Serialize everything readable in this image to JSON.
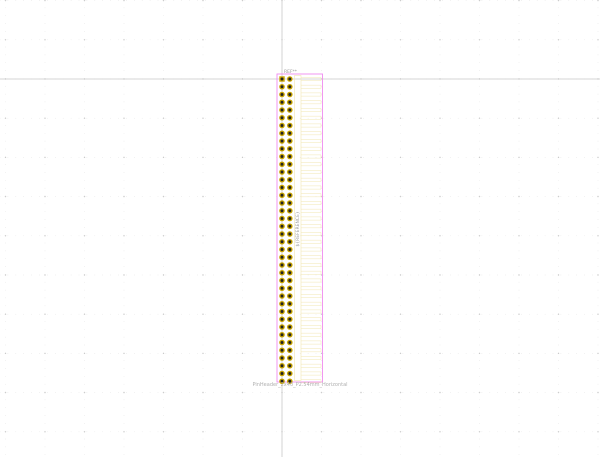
{
  "footprint": {
    "reference": "REF**",
    "value": "PinHeader_2x40_P2.54mm_Horizontal",
    "fab_label": "${REFERENCE}",
    "pin_rows": 40,
    "pin_columns": 2
  },
  "colors": {
    "background": "#ffffff",
    "grid_dot": "#c8c8c8",
    "crosshair": "#c8c8c8",
    "courtyard": "#f08cf0",
    "fab_outline": "#f2e7b2",
    "silkscreen": "#f2e7b2",
    "pad_copper": "#c8a400",
    "pad_hole": "#222222"
  },
  "icons": {
    "pad": "through-hole-pad-icon"
  }
}
